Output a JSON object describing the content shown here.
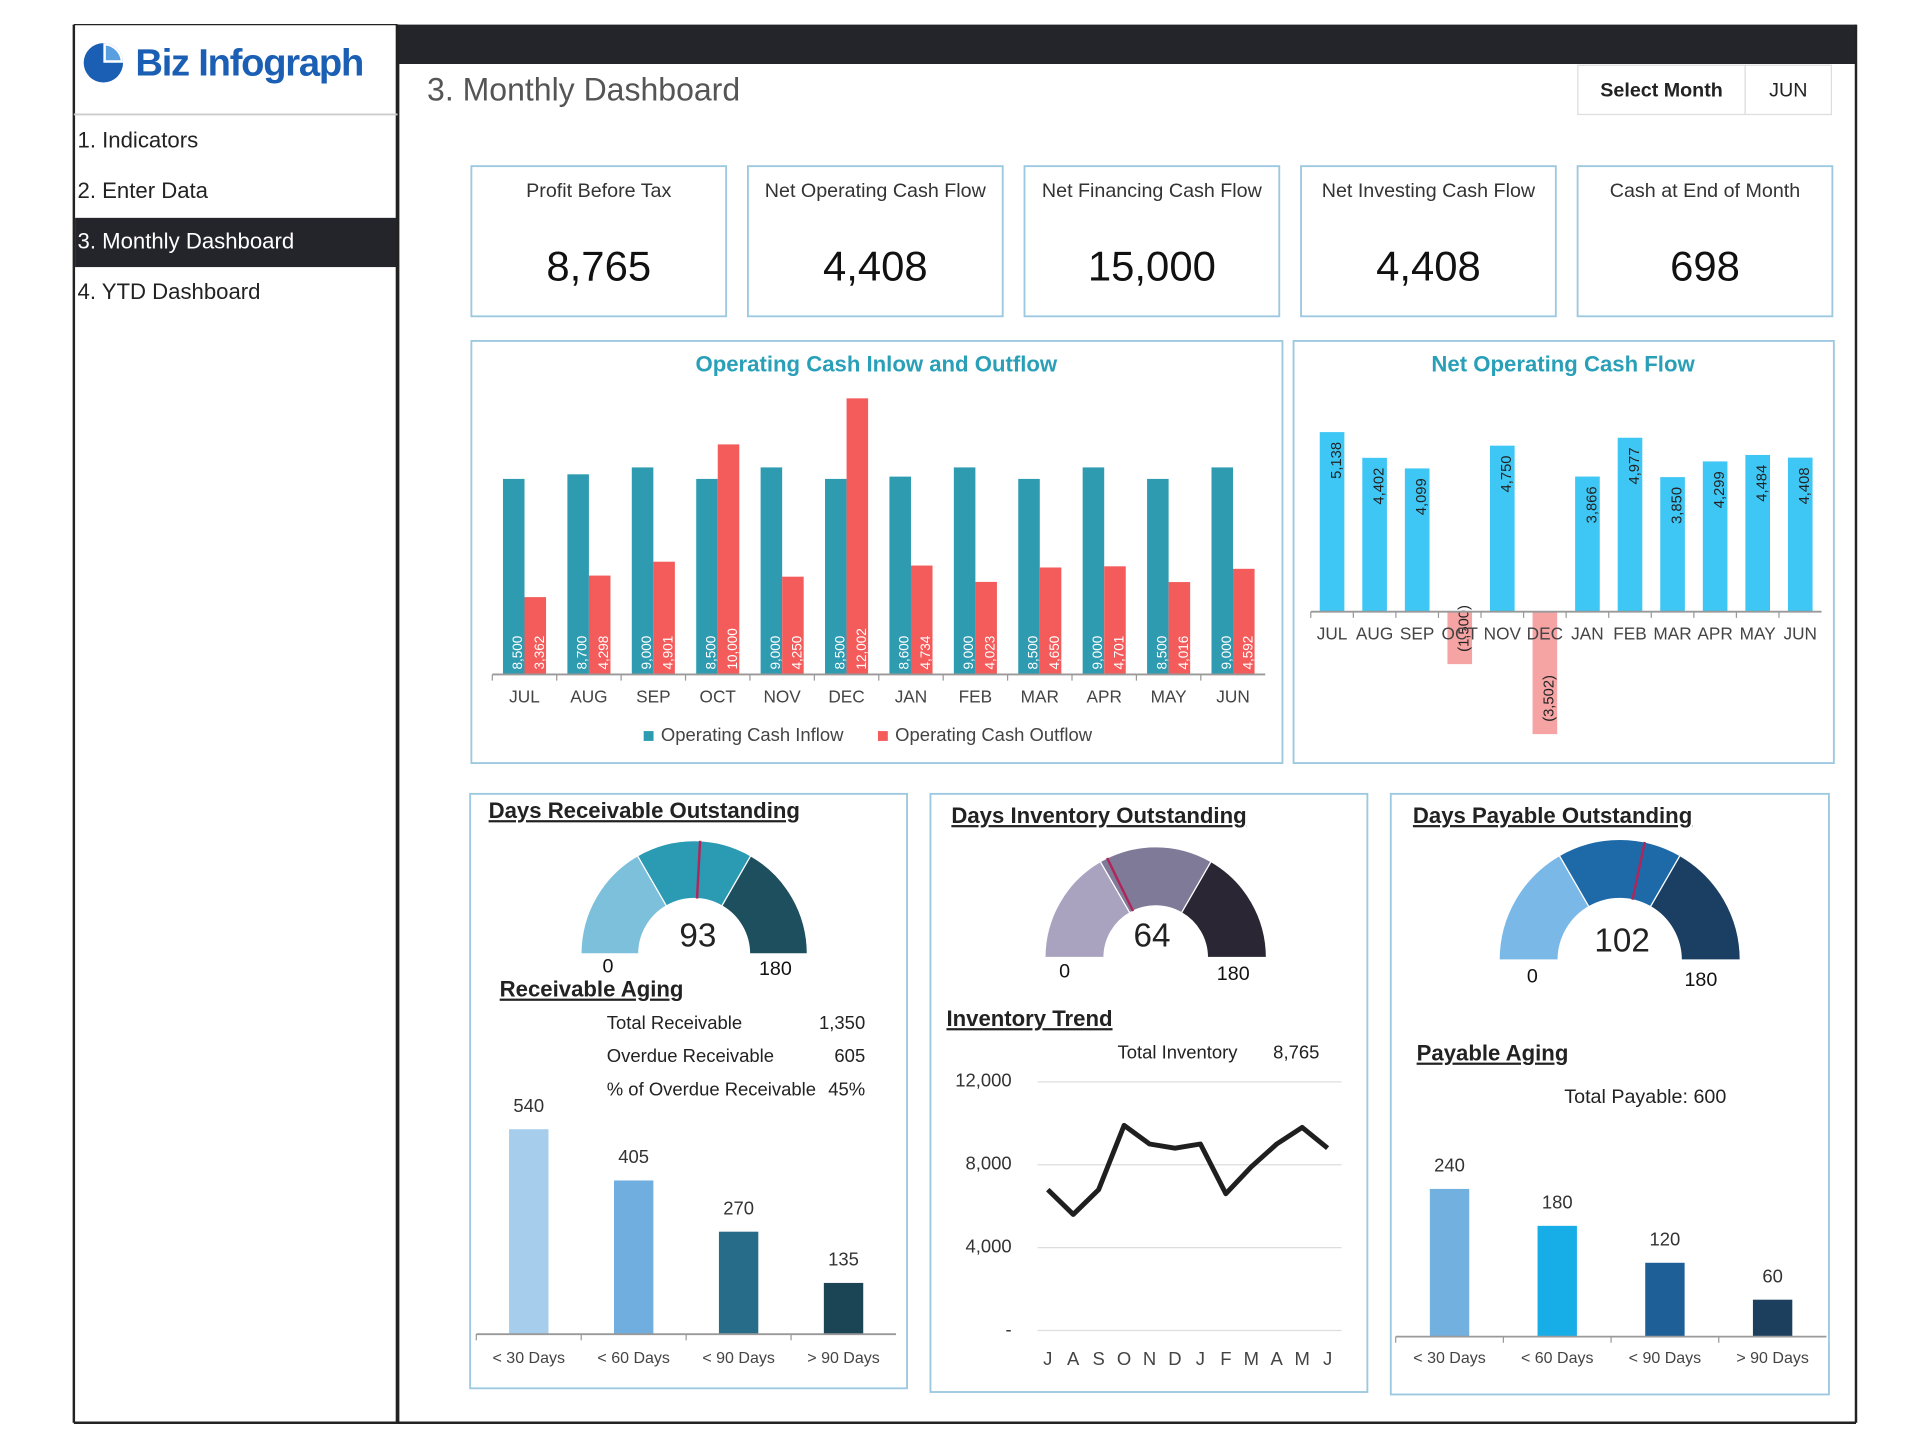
{
  "brand": "Biz Infograph",
  "nav": [
    "1. Indicators",
    "2. Enter Data",
    "3. Monthly Dashboard",
    "4. YTD Dashboard"
  ],
  "page_title": "3. Monthly Dashboard",
  "month_selector": {
    "label": "Select Month",
    "value": "JUN"
  },
  "kpis": [
    {
      "label": "Profit Before Tax",
      "value": "8,765"
    },
    {
      "label": "Net Operating Cash Flow",
      "value": "4,408"
    },
    {
      "label": "Net Financing Cash Flow",
      "value": "15,000"
    },
    {
      "label": "Net Investing Cash Flow",
      "value": "4,408"
    },
    {
      "label": "Cash at End of Month",
      "value": "698"
    }
  ],
  "chart_data": [
    {
      "type": "bar",
      "title": "Operating Cash Inlow and Outflow",
      "categories": [
        "JUL",
        "AUG",
        "SEP",
        "OCT",
        "NOV",
        "DEC",
        "JAN",
        "FEB",
        "MAR",
        "APR",
        "MAY",
        "JUN"
      ],
      "series": [
        {
          "name": "Operating Cash Inflow",
          "color": "#2e9bb0",
          "values": [
            8500,
            8700,
            9000,
            8500,
            9000,
            8500,
            8600,
            9000,
            8500,
            9000,
            8500,
            9000
          ],
          "value_labels": [
            "8,500",
            "8,700",
            "9,000",
            "8,500",
            "9,000",
            "8,500",
            "8,600",
            "9,000",
            "8,500",
            "9,000",
            "8,500",
            "9,000"
          ]
        },
        {
          "name": "Operating Cash Outflow",
          "color": "#f45b5b",
          "values": [
            3362,
            4298,
            4901,
            10000,
            4250,
            12002,
            4734,
            4023,
            4650,
            4701,
            4016,
            4592
          ],
          "value_labels": [
            "3,362",
            "4,298",
            "4,901",
            "10,000",
            "4,250",
            "12,002",
            "4,734",
            "4,023",
            "4,650",
            "4,701",
            "4,016",
            "4,592"
          ]
        }
      ],
      "ylim": [
        0,
        13000
      ],
      "legend": "bottom"
    },
    {
      "type": "bar",
      "title": "Net Operating Cash Flow",
      "categories": [
        "JUL",
        "AUG",
        "SEP",
        "OCT",
        "NOV",
        "DEC",
        "JAN",
        "FEB",
        "MAR",
        "APR",
        "MAY",
        "JUN"
      ],
      "values": [
        5138,
        4402,
        4099,
        -1500,
        4750,
        -3502,
        3866,
        4977,
        3850,
        4299,
        4484,
        4408
      ],
      "value_labels": [
        "5,138",
        "4,402",
        "4,099",
        "(1,500)",
        "4,750",
        "(3,502)",
        "3,866",
        "4,977",
        "3,850",
        "4,299",
        "4,484",
        "4,408"
      ],
      "color": "#3ec6f4",
      "negative_color": "#f5a3a3",
      "ylim": [
        -4000,
        6000
      ]
    },
    {
      "type": "gauge",
      "title": "Days Receivable Outstanding",
      "value": 93,
      "ylim": [
        0,
        180
      ],
      "yticks": [
        0,
        180
      ],
      "band_colors": [
        "#7dc0dc",
        "#2b9ab3",
        "#1d4f5e"
      ],
      "needle_color": "#b0265a"
    },
    {
      "type": "bar",
      "title": "Receivable Aging",
      "summary": [
        {
          "label": "Total Receivable",
          "value": "1,350"
        },
        {
          "label": "Overdue Receivable",
          "value": "605"
        },
        {
          "label": "% of Overdue Receivable",
          "value": "45%"
        }
      ],
      "categories": [
        "< 30 Days",
        "< 60 Days",
        "< 90 Days",
        "> 90 Days"
      ],
      "values": [
        540,
        405,
        270,
        135
      ],
      "colors": [
        "#a6cdec",
        "#70aee0",
        "#276d8a",
        "#1b4555"
      ],
      "ylim": [
        0,
        600
      ]
    },
    {
      "type": "gauge",
      "title": "Days Inventory Outstanding",
      "value": 64,
      "ylim": [
        0,
        180
      ],
      "yticks": [
        0,
        180
      ],
      "band_colors": [
        "#aaa3c0",
        "#807a99",
        "#2a2633"
      ],
      "needle_color": "#b0265a"
    },
    {
      "type": "line",
      "title": "Inventory Trend",
      "summary": [
        {
          "label": "Total Inventory",
          "value": "8,765"
        }
      ],
      "categories": [
        "J",
        "A",
        "S",
        "O",
        "N",
        "D",
        "J",
        "F",
        "M",
        "A",
        "M",
        "J"
      ],
      "values": [
        6800,
        5600,
        6800,
        9900,
        9000,
        8800,
        9000,
        6600,
        7900,
        9000,
        9800,
        8800
      ],
      "color": "#1f1f1f",
      "ylim": [
        0,
        12000
      ],
      "yticks": [
        {
          "value": 0,
          "label": "-"
        },
        {
          "value": 4000,
          "label": "4,000"
        },
        {
          "value": 8000,
          "label": "8,000"
        },
        {
          "value": 12000,
          "label": "12,000"
        }
      ],
      "grid": true
    },
    {
      "type": "gauge",
      "title": "Days Payable Outstanding",
      "value": 102,
      "ylim": [
        0,
        180
      ],
      "yticks": [
        0,
        180
      ],
      "band_colors": [
        "#7ab8e8",
        "#1e6aa8",
        "#1b3f63"
      ],
      "needle_color": "#b0265a"
    },
    {
      "type": "bar",
      "title": "Payable Aging",
      "subtitle": "Total Payable: 600",
      "categories": [
        "< 30 Days",
        "< 60 Days",
        "< 90 Days",
        "> 90 Days"
      ],
      "values": [
        240,
        180,
        120,
        60
      ],
      "colors": [
        "#72b0e0",
        "#17aee8",
        "#1f5f97",
        "#1d3f5e"
      ],
      "ylim": [
        0,
        300
      ]
    }
  ]
}
